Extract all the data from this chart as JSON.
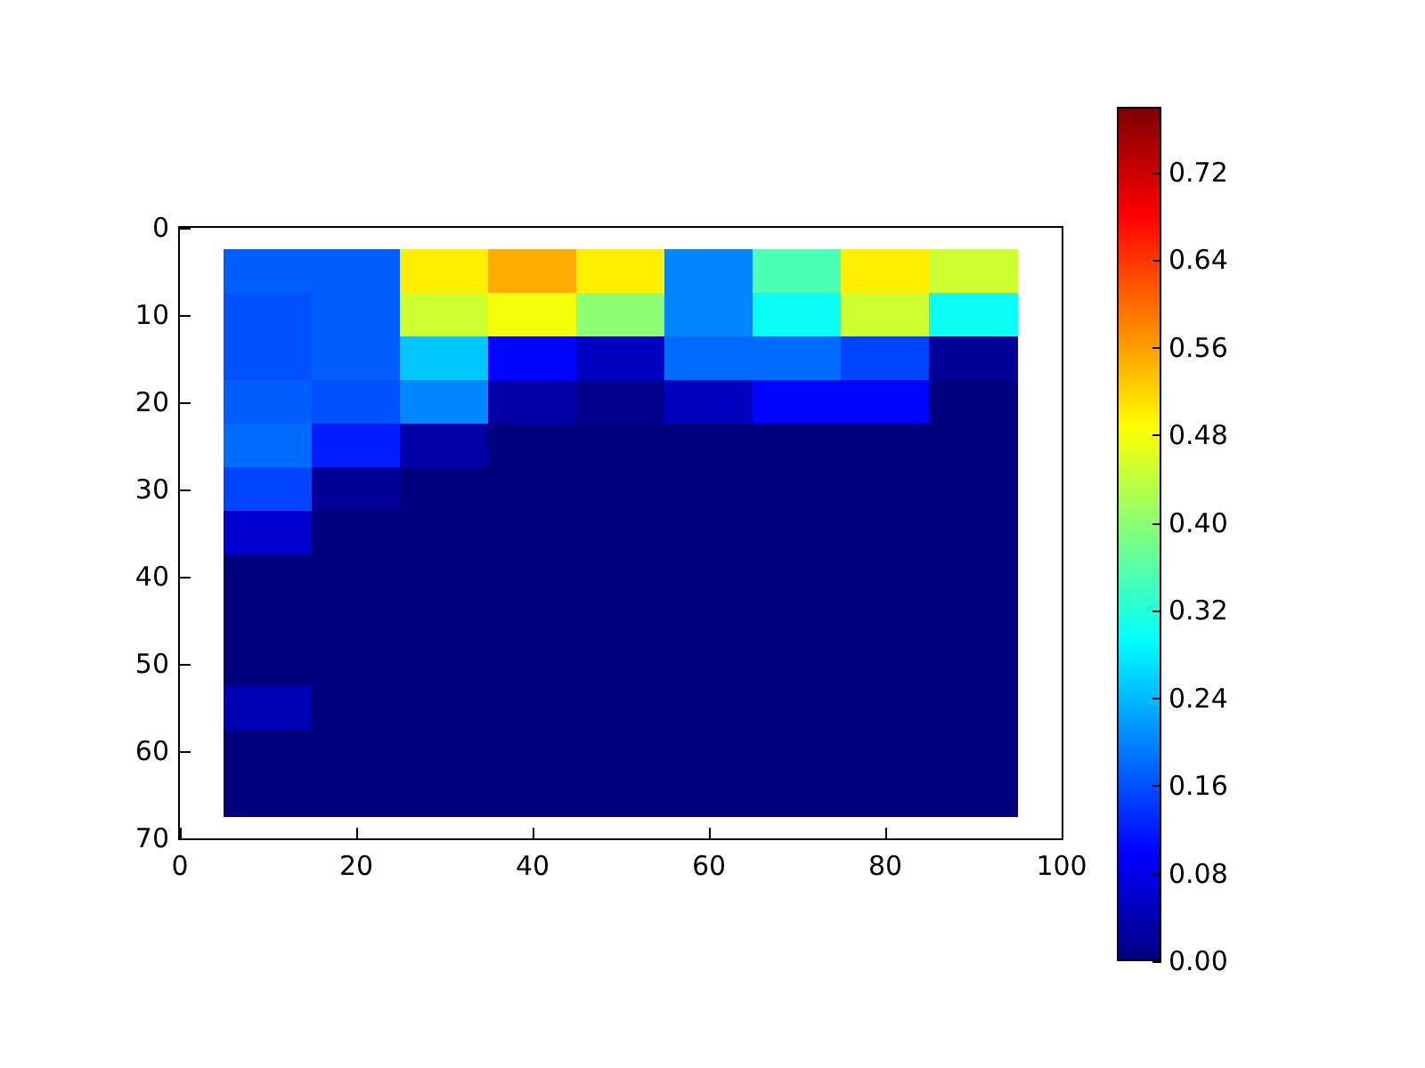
{
  "chart_data": {
    "type": "heatmap",
    "categories": [
      "0",
      null,
      "20",
      null,
      "40",
      null,
      "60",
      null,
      "80",
      null,
      "100"
    ],
    "y_categories": [
      "0",
      null,
      "10",
      null,
      "20",
      null,
      "30",
      null,
      "40",
      null,
      "50",
      null,
      "60",
      null,
      "70"
    ],
    "clim": [
      0,
      0.78
    ],
    "cticks": [
      {
        "value": 0,
        "label": "0.00"
      },
      0.08,
      0.16,
      0.24,
      0.32,
      {
        "value": 0.4,
        "label": "0.40"
      },
      0.48,
      0.56,
      0.64,
      0.72
    ],
    "cells": [
      [
        null,
        null,
        null,
        null,
        null,
        null,
        null,
        null,
        null,
        null,
        null
      ],
      [
        null,
        0.17,
        0.17,
        0.5,
        0.55,
        0.5,
        0.2,
        0.35,
        0.5,
        0.45,
        null
      ],
      [
        null,
        0.16,
        0.17,
        0.45,
        0.48,
        0.4,
        0.2,
        0.3,
        0.45,
        0.3,
        null
      ],
      [
        null,
        0.16,
        0.17,
        0.25,
        0.1,
        0.05,
        0.18,
        0.18,
        0.15,
        0.02,
        null
      ],
      [
        null,
        0.17,
        0.16,
        0.2,
        0.03,
        0.01,
        0.05,
        0.1,
        0.1,
        0,
        null
      ],
      [
        null,
        0.18,
        0.12,
        0.03,
        0,
        0,
        0,
        0,
        0,
        0,
        null
      ],
      [
        null,
        0.15,
        0.02,
        0,
        0,
        0,
        0,
        0,
        0,
        0,
        null
      ],
      [
        null,
        0.06,
        0,
        0,
        0,
        0,
        0,
        0,
        0,
        0,
        null
      ],
      [
        null,
        0,
        0,
        0,
        0,
        0,
        0,
        0,
        0,
        0,
        null
      ],
      [
        null,
        0,
        0,
        0,
        0,
        0,
        0,
        0,
        0,
        0,
        null
      ],
      [
        null,
        0,
        0,
        0,
        0,
        0,
        0,
        0,
        0,
        0,
        null
      ],
      [
        null,
        0.04,
        0,
        0,
        0,
        0,
        0,
        0,
        0,
        0,
        null
      ],
      [
        null,
        0,
        0,
        0,
        0,
        0,
        0,
        0,
        0,
        0,
        null
      ],
      [
        null,
        0,
        0,
        0,
        0,
        0,
        0,
        0,
        0,
        0,
        null
      ],
      [
        null,
        null,
        null,
        null,
        null,
        null,
        null,
        null,
        null,
        null,
        null
      ]
    ]
  }
}
